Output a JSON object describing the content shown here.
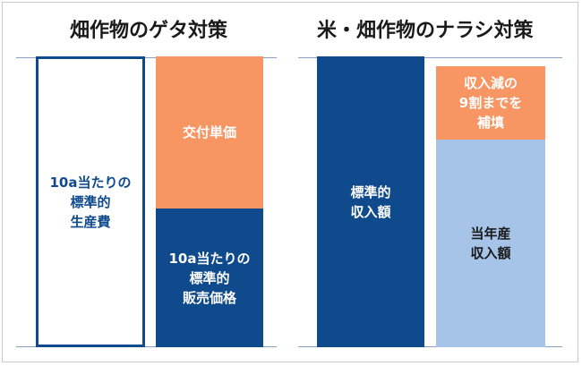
{
  "left": {
    "title": "畑作物のゲタ対策",
    "production_cost": "10a当たりの\n標準的\n生産費",
    "subsidy": "交付単価",
    "sales_price": "10a当たりの\n標準的\n販売価格"
  },
  "right": {
    "title": "米・畑作物のナラシ対策",
    "standard_income": "標準的\n収入額",
    "compensation": "収入減の\n9割までを\n補填",
    "current_income": "当年産\n収入額"
  },
  "colors": {
    "navy": "#0e4a8c",
    "orange": "#f79563",
    "light_blue": "#a6c3e8"
  }
}
